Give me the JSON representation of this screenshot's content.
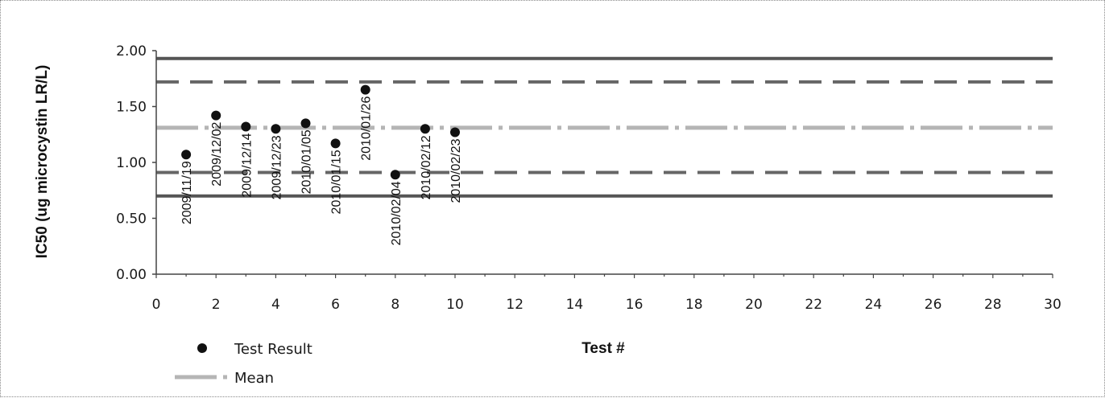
{
  "chart_data": {
    "type": "scatter",
    "title": "",
    "xlabel": "Test #",
    "ylabel": "IC50 (ug microcystin LR/L)",
    "xlim": [
      0,
      30
    ],
    "ylim": [
      0.0,
      2.0
    ],
    "x_ticks": [
      "0",
      "2",
      "4",
      "6",
      "8",
      "10",
      "12",
      "14",
      "16",
      "18",
      "20",
      "22",
      "24",
      "26",
      "28",
      "30"
    ],
    "y_ticks": [
      "0.00",
      "0.50",
      "1.00",
      "1.50",
      "2.00"
    ],
    "grid": false,
    "legend_position": "bottom-left",
    "series": [
      {
        "name": "Test Result",
        "x": [
          1,
          2,
          3,
          4,
          5,
          6,
          7,
          8,
          9,
          10
        ],
        "y": [
          1.07,
          1.42,
          1.32,
          1.3,
          1.35,
          1.17,
          1.65,
          0.89,
          1.3,
          1.27
        ],
        "labels": [
          "2009/11/19",
          "2009/12/02",
          "2009/12/14",
          "2009/12/23",
          "2010/01/05",
          "2010/01/15",
          "2010/01/26",
          "2010/02/04",
          "2010/02/12",
          "2010/02/23"
        ],
        "color": "#111111"
      },
      {
        "name": "Mean",
        "value": 1.31,
        "color": "#b5b5b5"
      }
    ],
    "reference_lines": [
      {
        "value": 1.93,
        "style": "solid",
        "color": "#555555"
      },
      {
        "value": 1.72,
        "style": "dashed",
        "color": "#666666"
      },
      {
        "value": 0.91,
        "style": "dashed",
        "color": "#666666"
      },
      {
        "value": 0.7,
        "style": "solid",
        "color": "#555555"
      }
    ]
  }
}
